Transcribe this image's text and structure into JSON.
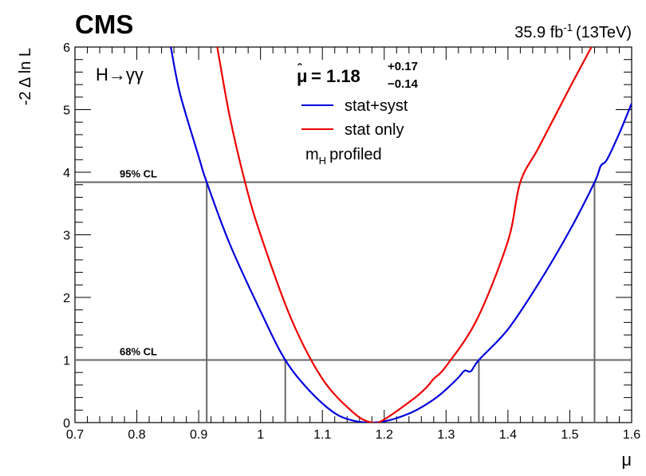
{
  "chart_data": {
    "type": "line",
    "experiment": "CMS",
    "lumi": {
      "value": "35.9 fb",
      "exp": "-1",
      "energy": "(13TeV)"
    },
    "channel": "H→γγ",
    "fit_result": {
      "symbol": "μ",
      "value": "1.18",
      "up": "+0.17",
      "down": "−0.14"
    },
    "xlabel": "μ",
    "ylabel": "-2 Δ ln L",
    "xlim": [
      0.7,
      1.6
    ],
    "ylim": [
      0,
      6
    ],
    "x_ticks": [
      "0.7",
      "0.8",
      "0.9",
      "1",
      "1.1",
      "1.2",
      "1.3",
      "1.4",
      "1.5",
      "1.6"
    ],
    "y_ticks": [
      "0",
      "1",
      "2",
      "3",
      "4",
      "5",
      "6"
    ],
    "legend_note": {
      "main": "m",
      "sub": "H",
      "rest": "profiled"
    },
    "cl_lines": [
      {
        "label": "95% CL",
        "y": 3.84,
        "x_low": 0.913,
        "x_high": 1.54
      },
      {
        "label": "68% CL",
        "y": 1.0,
        "x_low": 1.04,
        "x_high": 1.353
      }
    ],
    "series": [
      {
        "name": "stat+syst",
        "color": "#0000dd",
        "x": [
          0.855,
          0.87,
          0.9,
          0.913,
          0.95,
          1.0,
          1.04,
          1.08,
          1.12,
          1.15,
          1.17,
          1.18,
          1.2,
          1.22,
          1.25,
          1.28,
          1.3,
          1.32,
          1.33,
          1.34,
          1.353,
          1.4,
          1.45,
          1.5,
          1.54,
          1.55,
          1.56,
          1.58,
          1.6
        ],
        "y": [
          6.0,
          5.25,
          4.25,
          3.84,
          2.86,
          1.78,
          1.0,
          0.5,
          0.15,
          0.03,
          0.003,
          0.0,
          0.02,
          0.07,
          0.19,
          0.37,
          0.53,
          0.72,
          0.83,
          0.82,
          1.0,
          1.49,
          2.23,
          3.07,
          3.84,
          4.1,
          4.2,
          4.62,
          5.1
        ]
      },
      {
        "name": "stat only",
        "color": "#ee0000",
        "x": [
          0.93,
          0.95,
          0.975,
          1.0,
          1.05,
          1.1,
          1.15,
          1.18,
          1.2,
          1.25,
          1.27,
          1.28,
          1.3,
          1.35,
          1.4,
          1.42,
          1.45,
          1.5,
          1.535
        ],
        "y": [
          6.0,
          4.9,
          3.84,
          3.0,
          1.65,
          0.7,
          0.16,
          0.0,
          0.05,
          0.4,
          0.58,
          0.7,
          0.9,
          1.65,
          2.9,
          3.84,
          4.4,
          5.35,
          6.0
        ]
      }
    ]
  }
}
